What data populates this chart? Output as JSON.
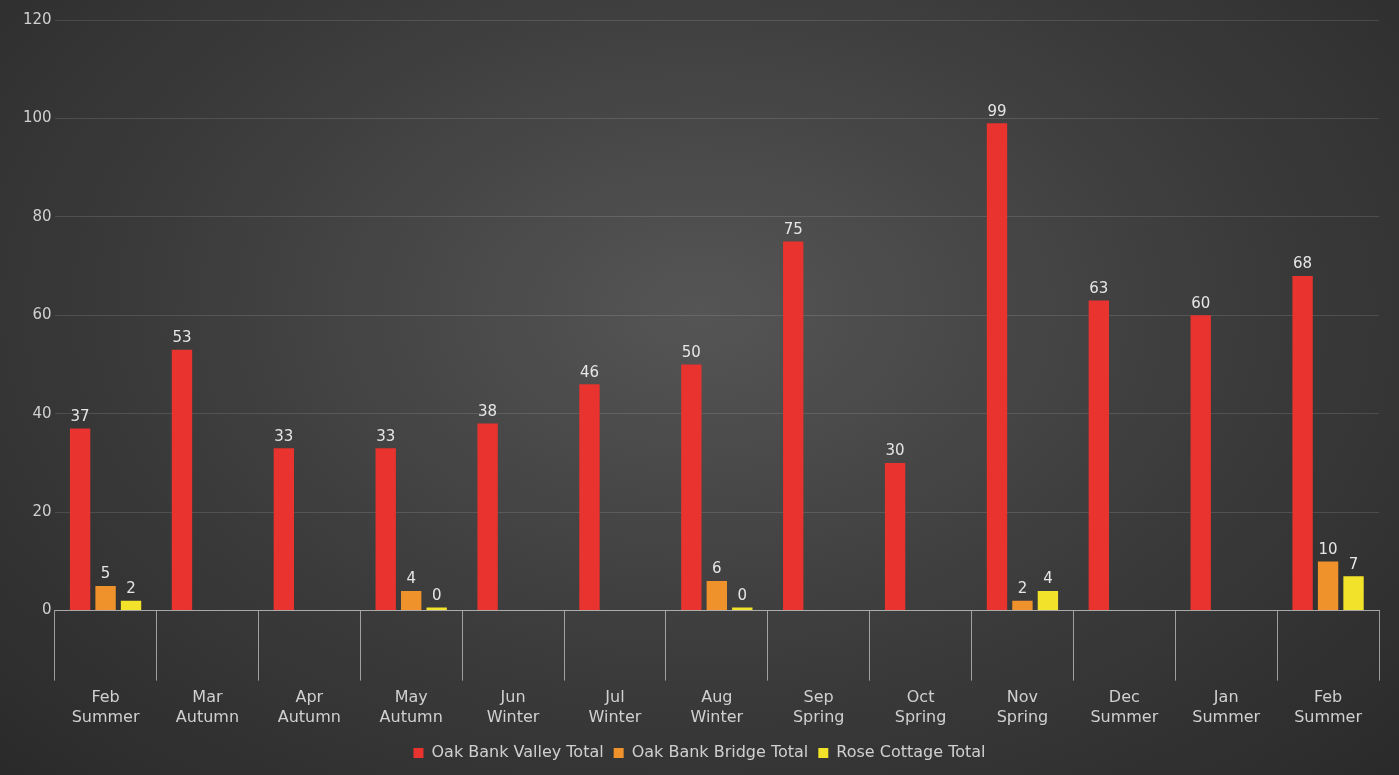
{
  "chart_data": {
    "type": "bar",
    "categories": [
      "Feb\nSummer",
      "Mar\nAutumn",
      "Apr\nAutumn",
      "May\nAutumn",
      "Jun\nWinter",
      "Jul\nWinter",
      "Aug\nWinter",
      "Sep\nSpring",
      "Oct\nSpring",
      "Nov\nSpring",
      "Dec\nSummer",
      "Jan\nSummer",
      "Feb\nSummer"
    ],
    "series": [
      {
        "name": "Oak Bank Valley Total",
        "color": "#e8332e",
        "values": [
          37,
          53,
          33,
          33,
          38,
          46,
          50,
          75,
          30,
          99,
          63,
          60,
          68
        ]
      },
      {
        "name": "Oak Bank Bridge Total",
        "color": "#f0922c",
        "values": [
          5,
          null,
          null,
          4,
          null,
          null,
          6,
          null,
          null,
          2,
          null,
          null,
          10
        ]
      },
      {
        "name": "Rose Cottage Total",
        "color": "#f2e229",
        "values": [
          2,
          null,
          null,
          0,
          null,
          null,
          0,
          null,
          null,
          4,
          null,
          null,
          7
        ]
      }
    ],
    "ylim": [
      0,
      120
    ],
    "yticks": [
      0,
      20,
      40,
      60,
      80,
      100,
      120
    ],
    "grid": true,
    "legend": "bottom",
    "data_labels": true
  }
}
